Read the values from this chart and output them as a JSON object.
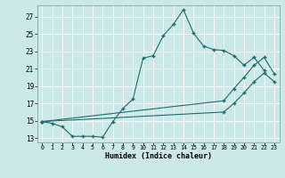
{
  "background_color": "#cce8e8",
  "grid_color": "#ffffff",
  "line_color": "#1a6e6a",
  "xlabel": "Humidex (Indice chaleur)",
  "xlim": [
    -0.5,
    23.5
  ],
  "ylim": [
    12.5,
    28.3
  ],
  "xticks": [
    0,
    1,
    2,
    3,
    4,
    5,
    6,
    7,
    8,
    9,
    10,
    11,
    12,
    13,
    14,
    15,
    16,
    17,
    18,
    19,
    20,
    21,
    22,
    23
  ],
  "yticks": [
    13,
    15,
    17,
    19,
    21,
    23,
    25,
    27
  ],
  "line1_x": [
    0,
    1,
    2,
    3,
    4,
    5,
    6,
    7,
    8,
    9,
    10,
    11,
    12,
    13,
    14,
    15,
    16,
    17,
    18,
    19,
    20,
    21,
    22
  ],
  "line1_y": [
    14.9,
    14.7,
    14.3,
    13.2,
    13.2,
    13.2,
    13.1,
    14.9,
    16.4,
    17.5,
    22.2,
    22.5,
    24.8,
    26.1,
    27.8,
    25.1,
    23.6,
    23.2,
    23.1,
    22.5,
    21.4,
    22.3,
    20.8
  ],
  "line2_x": [
    0,
    18,
    19,
    20,
    21,
    22,
    23
  ],
  "line2_y": [
    14.9,
    17.3,
    18.7,
    20.0,
    21.4,
    22.3,
    20.4
  ],
  "line3_x": [
    0,
    18,
    19,
    20,
    21,
    22,
    23
  ],
  "line3_y": [
    14.9,
    16.0,
    17.0,
    18.2,
    19.5,
    20.5,
    19.5
  ]
}
